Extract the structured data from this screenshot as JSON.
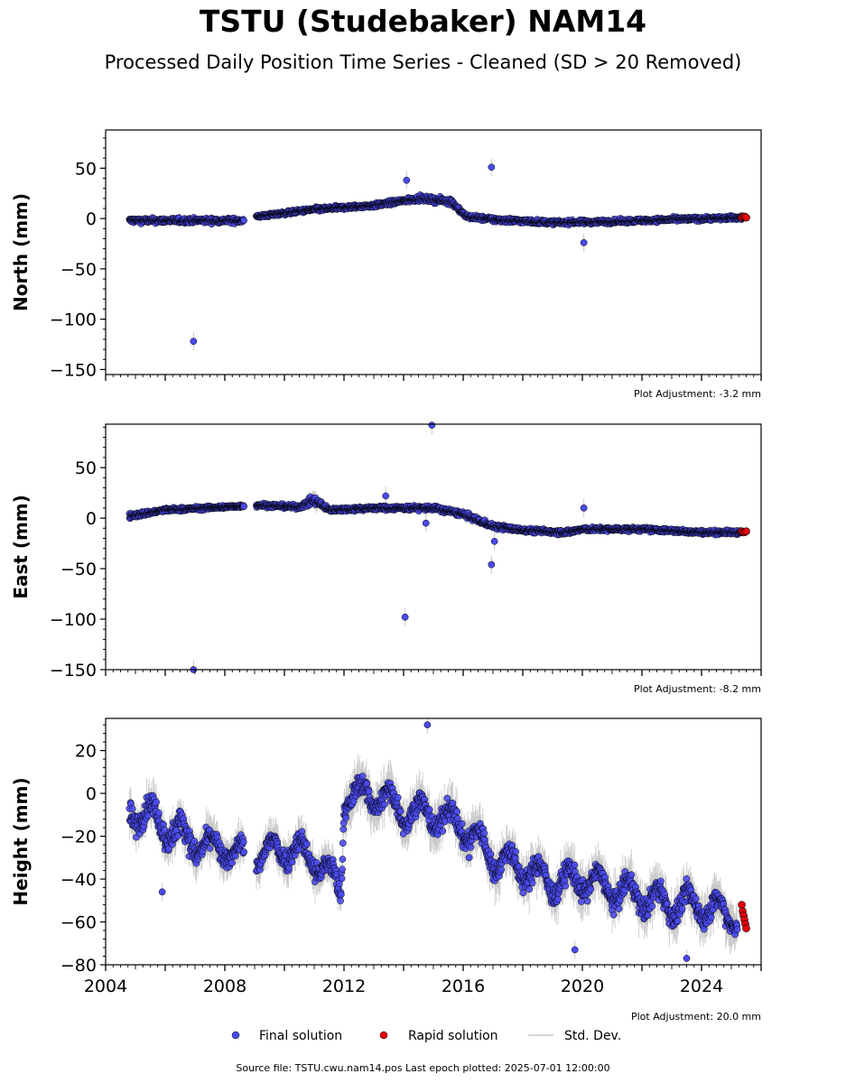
{
  "title": "TSTU (Studebaker) NAM14",
  "subtitle": "Processed Daily Position Time Series - Cleaned (SD > 20 Removed)",
  "footer": "Source file: TSTU.cwu.nam14.pos  Last epoch plotted: 2025-07-01 12:00:00",
  "colors": {
    "final": "#4a4aef",
    "rapid": "#e8000b",
    "stddev": "#c8c8c8",
    "edge": "#000000"
  },
  "legend": {
    "final": "Final solution",
    "rapid": "Rapid solution",
    "stddev": "Std. Dev."
  },
  "chart_data": [
    {
      "type": "scatter",
      "ylabel": "North (mm)",
      "adjustment": "Plot Adjustment: -3.2 mm",
      "xlim": [
        2004.0,
        2026.0
      ],
      "ylim": [
        -155,
        88
      ],
      "yticks": [
        50,
        0,
        -50,
        -100,
        -150
      ],
      "ytick_labels": [
        "50",
        "0",
        "−50",
        "−100",
        "−150"
      ],
      "trend": [
        [
          2004.8,
          -2,
          5,
          1.2
        ],
        [
          2008.6,
          -2,
          5,
          1.2
        ],
        [
          2009.1,
          2,
          3,
          1.2
        ],
        [
          2011.0,
          9,
          4,
          1.2
        ],
        [
          2013.0,
          13,
          4,
          1.2
        ],
        [
          2014.5,
          20,
          5,
          1.5
        ],
        [
          2015.6,
          17,
          6,
          2.5
        ],
        [
          2016.1,
          2,
          4,
          1.5
        ],
        [
          2017.0,
          -1,
          5,
          1.5
        ],
        [
          2019.0,
          -4,
          4,
          1.2
        ],
        [
          2021.0,
          -3,
          4,
          1.2
        ],
        [
          2023.0,
          -1,
          4,
          1.2
        ],
        [
          2025.4,
          1,
          4,
          1.2
        ]
      ],
      "outliers": [
        [
          2006.95,
          -122
        ],
        [
          2014.1,
          38
        ],
        [
          2016.95,
          51
        ],
        [
          2020.05,
          -24
        ]
      ],
      "rapid": [
        [
          2025.35,
          1
        ],
        [
          2025.4,
          2
        ],
        [
          2025.45,
          2
        ],
        [
          2025.5,
          1
        ]
      ]
    },
    {
      "type": "scatter",
      "ylabel": "East (mm)",
      "adjustment": "Plot Adjustment: -8.2 mm",
      "xlim": [
        2004.0,
        2026.0
      ],
      "ylim": [
        -150,
        93
      ],
      "yticks": [
        50,
        0,
        -50,
        -100,
        -150
      ],
      "ytick_labels": [
        "50",
        "0",
        "−50",
        "−100",
        "−150"
      ],
      "trend": [
        [
          2004.8,
          2,
          5,
          1.5
        ],
        [
          2006.0,
          8,
          4,
          1.5
        ],
        [
          2008.6,
          12,
          3,
          1.5
        ],
        [
          2009.1,
          13,
          4,
          1.5
        ],
        [
          2010.5,
          11,
          4,
          1.5
        ],
        [
          2011.0,
          18,
          8,
          5
        ],
        [
          2011.5,
          8,
          4,
          1.5
        ],
        [
          2013.0,
          10,
          4,
          1.5
        ],
        [
          2015.0,
          10,
          5,
          1.5
        ],
        [
          2016.0,
          4,
          5,
          2
        ],
        [
          2017.0,
          -8,
          5,
          2
        ],
        [
          2018.0,
          -12,
          4,
          1.5
        ],
        [
          2019.5,
          -14,
          5,
          1.5
        ],
        [
          2020.0,
          -11,
          4,
          1.5
        ],
        [
          2022.0,
          -11,
          4,
          1.5
        ],
        [
          2024.0,
          -14,
          4,
          1.5
        ],
        [
          2025.4,
          -14,
          4,
          1.5
        ]
      ],
      "outliers": [
        [
          2006.95,
          -150
        ],
        [
          2014.05,
          -98
        ],
        [
          2014.95,
          92
        ],
        [
          2014.75,
          -5
        ],
        [
          2016.95,
          -46
        ],
        [
          2017.05,
          -23
        ],
        [
          2020.05,
          10
        ],
        [
          2013.4,
          22
        ]
      ],
      "rapid": [
        [
          2025.35,
          -13
        ],
        [
          2025.4,
          -14
        ],
        [
          2025.45,
          -14
        ],
        [
          2025.5,
          -13
        ]
      ]
    },
    {
      "type": "scatter",
      "ylabel": "Height (mm)",
      "adjustment": "Plot Adjustment: 20.0 mm",
      "xlim": [
        2004.0,
        2026.0
      ],
      "ylim": [
        -80,
        35
      ],
      "yticks": [
        20,
        0,
        -20,
        -40,
        -60,
        -80
      ],
      "ytick_labels": [
        "20",
        "0",
        "−20",
        "−40",
        "−60",
        "−80"
      ],
      "xticks": [
        2004,
        2008,
        2012,
        2016,
        2020,
        2024
      ],
      "xtick_labels": [
        "2004",
        "2008",
        "2012",
        "2016",
        "2020",
        "2024"
      ],
      "trend": [
        [
          2004.8,
          -8,
          11,
          5
        ],
        [
          2005.5,
          -10,
          10,
          5
        ],
        [
          2006.5,
          -20,
          12,
          5
        ],
        [
          2007.5,
          -25,
          9,
          5
        ],
        [
          2008.6,
          -28,
          8,
          5
        ],
        [
          2009.1,
          -30,
          10,
          5
        ],
        [
          2010.0,
          -25,
          10,
          5
        ],
        [
          2011.0,
          -30,
          10,
          5
        ],
        [
          2011.9,
          -45,
          10,
          5
        ],
        [
          2012.0,
          -2,
          9,
          6
        ],
        [
          2013.0,
          0,
          10,
          6
        ],
        [
          2014.0,
          -8,
          10,
          6
        ],
        [
          2015.0,
          -10,
          10,
          6
        ],
        [
          2016.0,
          -15,
          10,
          6
        ],
        [
          2017.0,
          -30,
          10,
          6
        ],
        [
          2018.0,
          -35,
          10,
          6
        ],
        [
          2019.0,
          -42,
          10,
          6
        ],
        [
          2020.0,
          -40,
          10,
          6
        ],
        [
          2021.0,
          -45,
          10,
          6
        ],
        [
          2022.0,
          -48,
          10,
          6
        ],
        [
          2023.0,
          -52,
          10,
          6
        ],
        [
          2024.0,
          -52,
          10,
          6
        ],
        [
          2025.2,
          -58,
          8,
          6
        ]
      ],
      "outliers": [
        [
          2014.8,
          32
        ],
        [
          2019.75,
          -73
        ],
        [
          2023.5,
          -77
        ],
        [
          2005.9,
          -46
        ],
        [
          2016.2,
          -30
        ]
      ],
      "rapid": [
        [
          2025.35,
          -52
        ],
        [
          2025.38,
          -55
        ],
        [
          2025.41,
          -57
        ],
        [
          2025.44,
          -59
        ],
        [
          2025.47,
          -61
        ],
        [
          2025.5,
          -63
        ]
      ]
    }
  ]
}
